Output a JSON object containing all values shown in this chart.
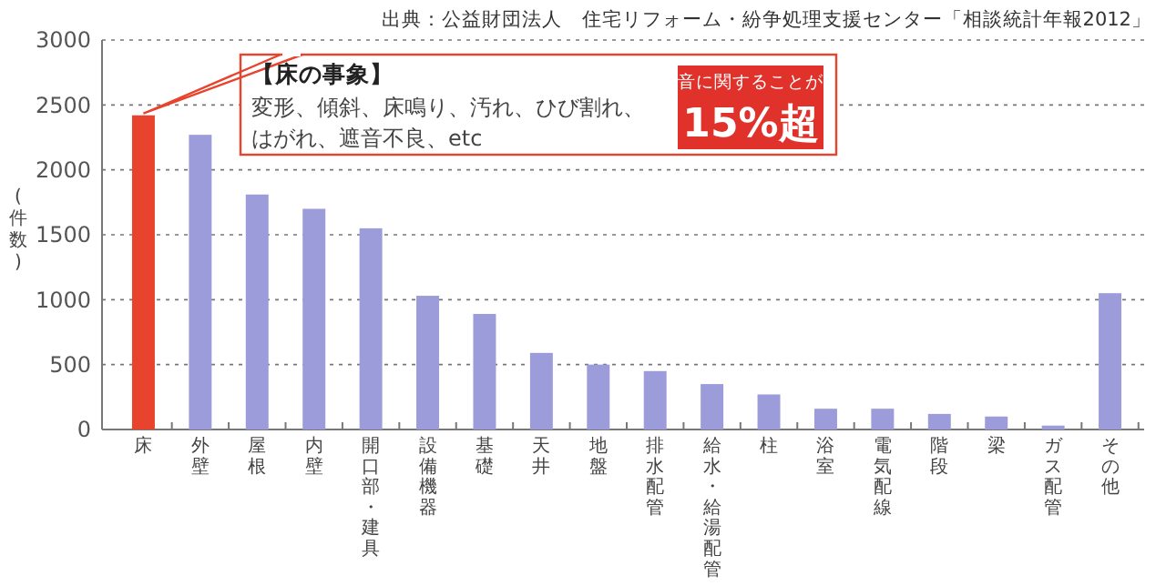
{
  "chart_data": {
    "type": "bar",
    "ylabel": "(件数)",
    "categories": [
      "床",
      "外壁",
      "屋根",
      "内壁",
      "開口部・建具",
      "設備機器",
      "基礎",
      "天井",
      "地盤",
      "排水配管",
      "給水・給湯配管",
      "柱",
      "浴室",
      "電気配線",
      "階段",
      "梁",
      "ガス配管",
      "その他"
    ],
    "values": [
      2420,
      2270,
      1810,
      1700,
      1550,
      1030,
      890,
      590,
      500,
      450,
      350,
      270,
      160,
      160,
      120,
      100,
      30,
      1050
    ],
    "colors": [
      "#e8432d",
      "#9c9cdb",
      "#9c9cdb",
      "#9c9cdb",
      "#9c9cdb",
      "#9c9cdb",
      "#9c9cdb",
      "#9c9cdb",
      "#9c9cdb",
      "#9c9cdb",
      "#9c9cdb",
      "#9c9cdb",
      "#9c9cdb",
      "#9c9cdb",
      "#9c9cdb",
      "#9c9cdb",
      "#9c9cdb",
      "#9c9cdb"
    ],
    "ylim": [
      0,
      3000
    ],
    "yticks": [
      0,
      500,
      1000,
      1500,
      2000,
      2500,
      3000
    ],
    "grid": "y",
    "annotations": [
      "出典：公益財団法人　住宅リフォーム・紛争処理支援センター「相談統計年報2012」",
      "【床の事象】",
      "変形、傾斜、床鳴り、汚れ、ひび割れ、",
      "はがれ、遮音不良、etc",
      "音に関することが",
      "15%超"
    ]
  }
}
